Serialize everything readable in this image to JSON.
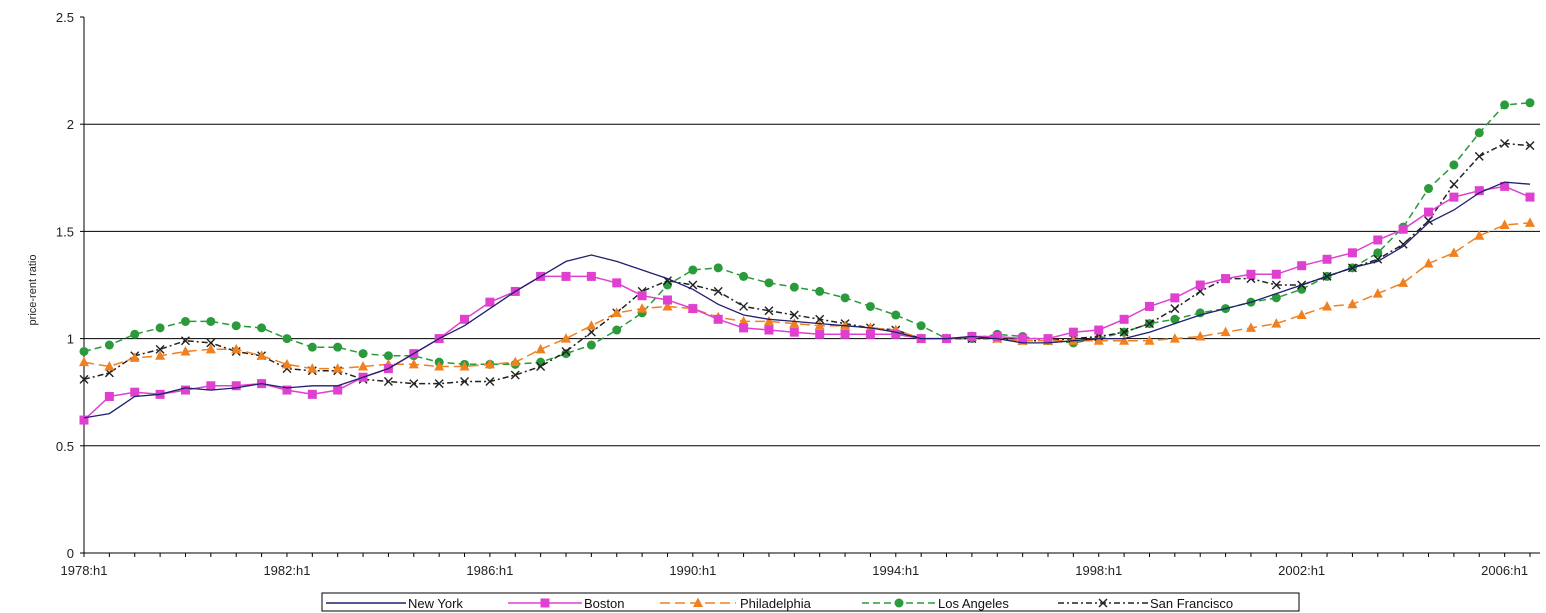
{
  "chart_data": {
    "type": "line",
    "title": "",
    "xlabel": "",
    "ylabel": "price-rent ratio",
    "ylim": [
      0,
      2.5
    ],
    "y_ticks": [
      "0",
      "0.5",
      "1",
      "1.5",
      "2",
      "2.5"
    ],
    "y_tick_values": [
      0,
      0.5,
      1,
      1.5,
      2,
      2.5
    ],
    "x_tick_labels": [
      "1978:h1",
      "1982:h1",
      "1986:h1",
      "1990:h1",
      "1994:h1",
      "1998:h1",
      "2002:h1",
      "2006:h1"
    ],
    "x_tick_values": [
      1978,
      1982,
      1986,
      1990,
      1994,
      1998,
      2002,
      2006
    ],
    "xlim": [
      1978,
      2006.5
    ],
    "x_step": 0.5,
    "gridlines": "horizontal",
    "legend_position": "bottom",
    "series": [
      {
        "name": "New York",
        "color": "#1f1f6e",
        "dash": "solid",
        "marker": "none",
        "values": [
          0.63,
          0.65,
          0.73,
          0.74,
          0.77,
          0.76,
          0.77,
          0.79,
          0.77,
          0.78,
          0.78,
          0.82,
          0.86,
          0.93,
          1.0,
          1.06,
          1.14,
          1.22,
          1.29,
          1.36,
          1.39,
          1.36,
          1.32,
          1.28,
          1.23,
          1.16,
          1.11,
          1.09,
          1.08,
          1.07,
          1.06,
          1.05,
          1.03,
          1.0,
          1.0,
          1.01,
          1.0,
          0.98,
          0.98,
          0.99,
          1.0,
          1.0,
          1.03,
          1.07,
          1.11,
          1.14,
          1.17,
          1.21,
          1.25,
          1.29,
          1.33,
          1.36,
          1.43,
          1.54,
          1.6,
          1.68,
          1.73,
          1.72
        ]
      },
      {
        "name": "Boston",
        "color": "#e040d0",
        "dash": "solid",
        "marker": "square",
        "values": [
          0.62,
          0.73,
          0.75,
          0.74,
          0.76,
          0.78,
          0.78,
          0.79,
          0.76,
          0.74,
          0.76,
          0.82,
          0.86,
          0.93,
          1.0,
          1.09,
          1.17,
          1.22,
          1.29,
          1.29,
          1.29,
          1.26,
          1.2,
          1.18,
          1.14,
          1.09,
          1.05,
          1.04,
          1.03,
          1.02,
          1.02,
          1.02,
          1.02,
          1.0,
          1.0,
          1.01,
          1.01,
          1.0,
          1.0,
          1.03,
          1.04,
          1.09,
          1.15,
          1.19,
          1.25,
          1.28,
          1.3,
          1.3,
          1.34,
          1.37,
          1.4,
          1.46,
          1.51,
          1.59,
          1.66,
          1.69,
          1.71,
          1.66
        ]
      },
      {
        "name": "Philadelphia",
        "color": "#f08020",
        "dash": "longdash",
        "marker": "triangle",
        "values": [
          0.89,
          0.87,
          0.91,
          0.92,
          0.94,
          0.95,
          0.95,
          0.92,
          0.88,
          0.86,
          0.86,
          0.87,
          0.88,
          0.88,
          0.87,
          0.87,
          0.88,
          0.89,
          0.95,
          1.0,
          1.06,
          1.12,
          1.14,
          1.15,
          1.14,
          1.1,
          1.08,
          1.08,
          1.07,
          1.06,
          1.06,
          1.05,
          1.04,
          1.0,
          1.0,
          1.01,
          1.0,
          0.99,
          0.99,
          0.99,
          0.99,
          0.99,
          0.99,
          1.0,
          1.01,
          1.03,
          1.05,
          1.07,
          1.11,
          1.15,
          1.16,
          1.21,
          1.26,
          1.35,
          1.4,
          1.48,
          1.53,
          1.54
        ]
      },
      {
        "name": "Los Angeles",
        "color": "#2a9a3a",
        "dash": "dash",
        "marker": "circle",
        "values": [
          0.94,
          0.97,
          1.02,
          1.05,
          1.08,
          1.08,
          1.06,
          1.05,
          1.0,
          0.96,
          0.96,
          0.93,
          0.92,
          0.92,
          0.89,
          0.88,
          0.88,
          0.88,
          0.89,
          0.93,
          0.97,
          1.04,
          1.12,
          1.25,
          1.32,
          1.33,
          1.29,
          1.26,
          1.24,
          1.22,
          1.19,
          1.15,
          1.11,
          1.06,
          1.0,
          1.0,
          1.02,
          1.01,
          0.99,
          0.98,
          1.0,
          1.03,
          1.07,
          1.09,
          1.12,
          1.14,
          1.17,
          1.19,
          1.23,
          1.29,
          1.33,
          1.4,
          1.52,
          1.7,
          1.81,
          1.96,
          2.09,
          2.1
        ]
      },
      {
        "name": "San Francisco",
        "color": "#222222",
        "dash": "dashdot",
        "marker": "x",
        "values": [
          0.81,
          0.84,
          0.92,
          0.95,
          0.99,
          0.98,
          0.94,
          0.92,
          0.86,
          0.85,
          0.85,
          0.81,
          0.8,
          0.79,
          0.79,
          0.8,
          0.8,
          0.83,
          0.87,
          0.94,
          1.03,
          1.12,
          1.22,
          1.27,
          1.25,
          1.22,
          1.15,
          1.13,
          1.11,
          1.09,
          1.07,
          1.05,
          1.04,
          1.0,
          1.0,
          1.0,
          1.0,
          0.99,
          0.99,
          1.0,
          1.01,
          1.03,
          1.07,
          1.14,
          1.22,
          1.28,
          1.28,
          1.25,
          1.25,
          1.29,
          1.33,
          1.37,
          1.44,
          1.55,
          1.72,
          1.85,
          1.91,
          1.9
        ]
      }
    ]
  }
}
